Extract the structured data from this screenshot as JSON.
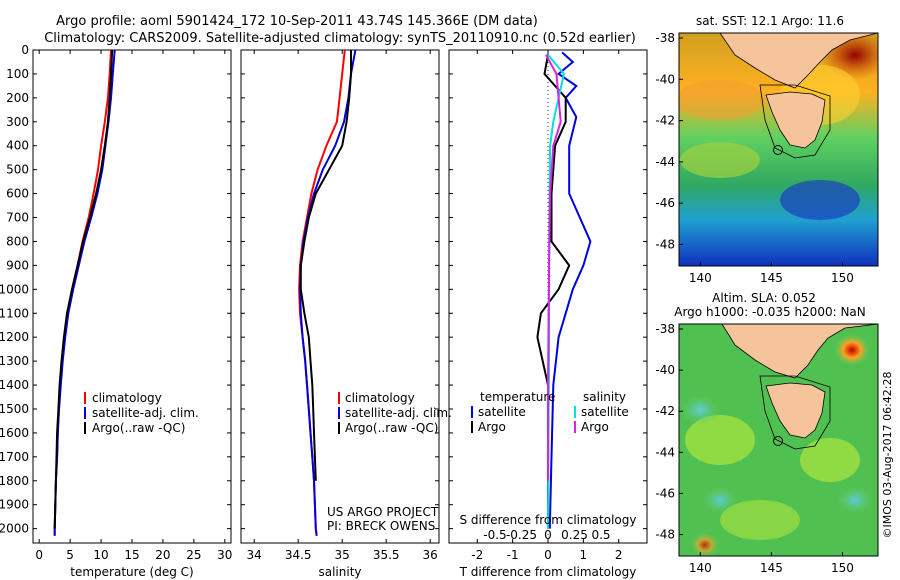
{
  "header": {
    "line1": "Argo profile: aoml 5901424_172 10-Sep-2011 43.74S 145.366E (DM data)",
    "line2": "Climatology: CARS2009. Satellite-adjusted climatology: synTS_20110910.nc (0.52d earlier)"
  },
  "side_label": "©IMOS 03-Aug-2017 06:42:28",
  "project_note": {
    "line1": "US ARGO PROJECT",
    "line2": "PI: BRECK OWENS"
  },
  "colors": {
    "climatology": "#ff0000",
    "satellite": "#0000dd",
    "argo": "#000000",
    "sal_satellite": "#00e0e0",
    "sal_argo": "#e020e0",
    "land": "#f5c49a"
  },
  "chart_data": [
    {
      "type": "line",
      "id": "temperature",
      "xlabel": "temperature (deg C)",
      "xlim": [
        -1,
        31
      ],
      "ylim": [
        2060,
        0
      ],
      "xticks": [
        0,
        5,
        10,
        15,
        20,
        25,
        30
      ],
      "yticks": [
        0,
        100,
        200,
        300,
        400,
        500,
        600,
        700,
        800,
        900,
        1000,
        1100,
        1200,
        1300,
        1400,
        1500,
        1600,
        1700,
        1800,
        1900,
        2000
      ],
      "legend": [
        "climatology",
        "satellite-adj. clim.",
        "Argo(..raw -QC)"
      ],
      "series": [
        {
          "name": "climatology",
          "color": "#ff0000",
          "points": [
            [
              11.6,
              0
            ],
            [
              11.4,
              100
            ],
            [
              11.1,
              200
            ],
            [
              10.6,
              300
            ],
            [
              10.0,
              400
            ],
            [
              9.5,
              500
            ],
            [
              8.8,
              600
            ],
            [
              8.0,
              700
            ],
            [
              7.0,
              800
            ],
            [
              6.2,
              900
            ],
            [
              5.3,
              1000
            ],
            [
              4.6,
              1100
            ],
            [
              4.1,
              1200
            ],
            [
              3.7,
              1300
            ],
            [
              3.4,
              1400
            ],
            [
              3.2,
              1500
            ],
            [
              3.0,
              1600
            ],
            [
              2.9,
              1700
            ],
            [
              2.7,
              1800
            ],
            [
              2.6,
              1900
            ],
            [
              2.5,
              2000
            ],
            [
              2.5,
              2030
            ]
          ]
        },
        {
          "name": "satellite-adj. clim.",
          "color": "#0000dd",
          "points": [
            [
              12.2,
              0
            ],
            [
              11.9,
              100
            ],
            [
              11.6,
              200
            ],
            [
              11.2,
              300
            ],
            [
              10.7,
              400
            ],
            [
              10.2,
              500
            ],
            [
              9.4,
              600
            ],
            [
              8.4,
              700
            ],
            [
              7.3,
              800
            ],
            [
              6.4,
              900
            ],
            [
              5.5,
              1000
            ],
            [
              4.7,
              1100
            ],
            [
              4.2,
              1200
            ],
            [
              3.8,
              1300
            ],
            [
              3.5,
              1400
            ],
            [
              3.2,
              1500
            ],
            [
              3.0,
              1600
            ],
            [
              2.9,
              1700
            ],
            [
              2.7,
              1800
            ],
            [
              2.6,
              1900
            ],
            [
              2.5,
              2000
            ],
            [
              2.5,
              2030
            ]
          ]
        },
        {
          "name": "Argo(..raw -QC)",
          "color": "#000000",
          "points": [
            [
              11.8,
              0
            ],
            [
              11.6,
              100
            ],
            [
              11.4,
              200
            ],
            [
              11.1,
              300
            ],
            [
              10.6,
              400
            ],
            [
              10.0,
              500
            ],
            [
              9.2,
              600
            ],
            [
              8.2,
              700
            ],
            [
              7.1,
              800
            ],
            [
              6.2,
              900
            ],
            [
              5.3,
              1000
            ],
            [
              4.5,
              1100
            ],
            [
              4.0,
              1200
            ],
            [
              3.6,
              1300
            ],
            [
              3.3,
              1400
            ],
            [
              3.1,
              1500
            ],
            [
              2.9,
              1600
            ],
            [
              2.8,
              1700
            ],
            [
              2.7,
              1800
            ],
            [
              2.6,
              1900
            ],
            [
              2.5,
              2000
            ]
          ]
        }
      ]
    },
    {
      "type": "line",
      "id": "salinity",
      "xlabel": "salinity",
      "xlim": [
        33.85,
        36.1
      ],
      "ylim": [
        2060,
        0
      ],
      "xticks": [
        34,
        34.5,
        35,
        35.5,
        36
      ],
      "legend": [
        "climatology",
        "satellite-adj. clim.",
        "Argo(..raw -QC)"
      ],
      "series": [
        {
          "name": "climatology",
          "color": "#ff0000",
          "points": [
            [
              35.03,
              0
            ],
            [
              35.0,
              100
            ],
            [
              34.97,
              200
            ],
            [
              34.94,
              300
            ],
            [
              34.82,
              400
            ],
            [
              34.72,
              500
            ],
            [
              34.65,
              600
            ],
            [
              34.6,
              700
            ],
            [
              34.55,
              800
            ],
            [
              34.52,
              900
            ],
            [
              34.51,
              1000
            ],
            [
              34.52,
              1100
            ],
            [
              34.55,
              1200
            ],
            [
              34.58,
              1300
            ],
            [
              34.6,
              1400
            ],
            [
              34.62,
              1500
            ],
            [
              34.64,
              1600
            ],
            [
              34.66,
              1700
            ],
            [
              34.68,
              1800
            ],
            [
              34.69,
              1900
            ],
            [
              34.7,
              2000
            ],
            [
              34.71,
              2030
            ]
          ]
        },
        {
          "name": "satellite-adj. clim.",
          "color": "#0000dd",
          "points": [
            [
              35.15,
              0
            ],
            [
              35.1,
              100
            ],
            [
              35.07,
              200
            ],
            [
              35.02,
              300
            ],
            [
              34.92,
              400
            ],
            [
              34.78,
              500
            ],
            [
              34.68,
              600
            ],
            [
              34.61,
              700
            ],
            [
              34.56,
              800
            ],
            [
              34.53,
              900
            ],
            [
              34.52,
              1000
            ],
            [
              34.53,
              1100
            ],
            [
              34.55,
              1200
            ],
            [
              34.58,
              1300
            ],
            [
              34.6,
              1400
            ],
            [
              34.62,
              1500
            ],
            [
              34.64,
              1600
            ],
            [
              34.66,
              1700
            ],
            [
              34.68,
              1800
            ],
            [
              34.69,
              1900
            ],
            [
              34.7,
              2000
            ],
            [
              34.71,
              2030
            ]
          ]
        },
        {
          "name": "Argo(..raw -QC)",
          "color": "#000000",
          "points": [
            [
              35.1,
              0
            ],
            [
              35.1,
              100
            ],
            [
              35.08,
              200
            ],
            [
              35.05,
              300
            ],
            [
              35.0,
              400
            ],
            [
              34.85,
              500
            ],
            [
              34.7,
              600
            ],
            [
              34.62,
              700
            ],
            [
              34.57,
              800
            ],
            [
              34.53,
              900
            ],
            [
              34.53,
              1000
            ],
            [
              34.57,
              1100
            ],
            [
              34.62,
              1200
            ],
            [
              34.64,
              1300
            ],
            [
              34.66,
              1400
            ],
            [
              34.67,
              1500
            ],
            [
              34.68,
              1600
            ],
            [
              34.69,
              1700
            ],
            [
              34.7,
              1800
            ]
          ]
        }
      ]
    },
    {
      "type": "line",
      "id": "difference",
      "xlabel": "T difference from climatology",
      "x2label": "S difference from climatology",
      "xlim": [
        -2.8,
        2.8
      ],
      "ylim": [
        2060,
        0
      ],
      "xticks": [
        -2,
        -1,
        0,
        1,
        2
      ],
      "x2ticks": [
        "-0.5",
        "-0.25",
        "0",
        "0.25",
        "0.5"
      ],
      "legend_temperature": {
        "title": "temperature",
        "items": [
          "satellite",
          "Argo"
        ]
      },
      "legend_salinity": {
        "title": "salinity",
        "items": [
          "satellite",
          "Argo"
        ]
      },
      "series": [
        {
          "name": "T satellite",
          "color": "#0000dd",
          "points": [
            [
              0.4,
              10
            ],
            [
              0.7,
              50
            ],
            [
              0.3,
              100
            ],
            [
              0.8,
              150
            ],
            [
              0.5,
              200
            ],
            [
              0.8,
              280
            ],
            [
              0.6,
              400
            ],
            [
              0.6,
              600
            ],
            [
              0.9,
              700
            ],
            [
              1.2,
              800
            ],
            [
              1.0,
              900
            ],
            [
              0.7,
              1000
            ],
            [
              0.5,
              1100
            ],
            [
              0.3,
              1200
            ],
            [
              0.15,
              1400
            ],
            [
              0.1,
              1700
            ],
            [
              0.05,
              2000
            ]
          ]
        },
        {
          "name": "T Argo",
          "color": "#000000",
          "points": [
            [
              0.0,
              20
            ],
            [
              -0.1,
              100
            ],
            [
              0.2,
              150
            ],
            [
              0.5,
              200
            ],
            [
              0.5,
              300
            ],
            [
              0.2,
              400
            ],
            [
              0.1,
              600
            ],
            [
              0.1,
              800
            ],
            [
              0.6,
              900
            ],
            [
              0.3,
              1000
            ],
            [
              -0.2,
              1100
            ],
            [
              -0.3,
              1200
            ],
            [
              0.0,
              1400
            ],
            [
              0.0,
              1700
            ],
            [
              0.0,
              2000
            ]
          ]
        },
        {
          "name": "S satellite",
          "color": "#00e0e0",
          "points": [
            [
              0.0,
              20
            ],
            [
              0.15,
              100
            ],
            [
              0.1,
              200
            ],
            [
              0.05,
              300
            ],
            [
              0.02,
              400
            ],
            [
              0.01,
              800
            ],
            [
              0.01,
              1200
            ],
            [
              0.0,
              2000
            ]
          ]
        },
        {
          "name": "S Argo",
          "color": "#e020e0",
          "points": [
            [
              -0.02,
              20
            ],
            [
              0.08,
              100
            ],
            [
              0.1,
              200
            ],
            [
              0.12,
              300
            ],
            [
              0.05,
              400
            ],
            [
              0.02,
              600
            ],
            [
              0.01,
              900
            ],
            [
              0.0,
              1400
            ],
            [
              0.0,
              1800
            ]
          ]
        }
      ]
    }
  ],
  "maps": [
    {
      "id": "sst",
      "title": "sat. SST: 12.1  Argo: 11.6",
      "xticks": [
        "140",
        "145",
        "150"
      ],
      "yticks": [
        "-38",
        "-40",
        "-42",
        "-44",
        "-46",
        "-48"
      ]
    },
    {
      "id": "sla",
      "title1": "Altim. SLA: 0.052",
      "title2": "Argo h1000: -0.035 h2000: NaN",
      "xticks": [
        "140",
        "145",
        "150"
      ],
      "yticks": [
        "-38",
        "-40",
        "-42",
        "-44",
        "-46",
        "-48"
      ]
    }
  ]
}
